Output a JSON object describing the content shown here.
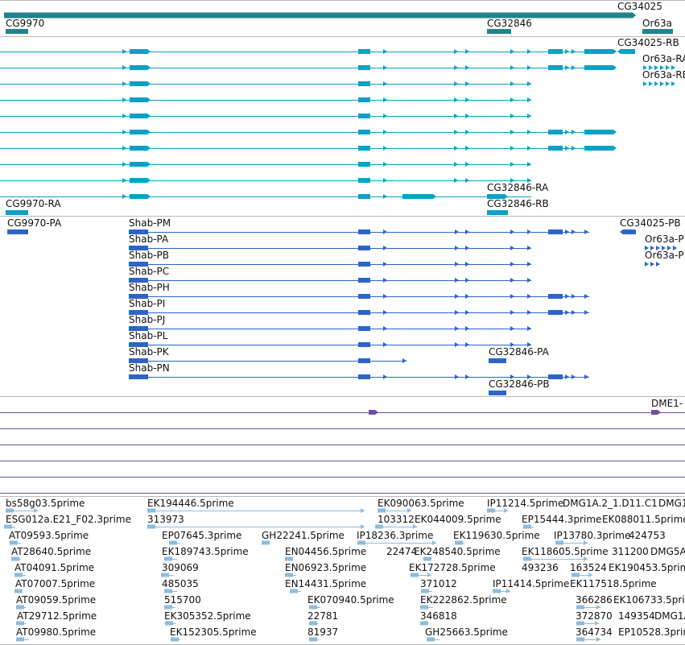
{
  "colors": {
    "gene": "#23838d",
    "transcript": "#0aa1c4",
    "protein": "#2d64c8",
    "feature": "#6e50a5",
    "est": "#8cbce0",
    "divider": "#b9b9b9"
  },
  "genes": {
    "labels": [
      {
        "id": "CG9970",
        "text": "CG9970"
      },
      {
        "id": "CG32846",
        "text": "CG32846"
      },
      {
        "id": "CG34025",
        "text": "CG34025"
      },
      {
        "id": "Or63a",
        "text": "Or63a"
      }
    ]
  },
  "transcripts": {
    "labels": [
      {
        "id": "CG34025-RB",
        "text": "CG34025-RB"
      },
      {
        "id": "Or63a-RA",
        "text": "Or63a-RA"
      },
      {
        "id": "Or63a-RB",
        "text": "Or63a-RB"
      },
      {
        "id": "CG32846-RA",
        "text": "CG32846-RA"
      },
      {
        "id": "CG32846-RB",
        "text": "CG32846-RB"
      },
      {
        "id": "CG9970-RA",
        "text": "CG9970-RA"
      }
    ]
  },
  "proteins": {
    "labels": [
      {
        "id": "CG9970-PA",
        "text": "CG9970-PA"
      },
      {
        "id": "Shab-PM",
        "text": "Shab-PM"
      },
      {
        "id": "Shab-PA",
        "text": "Shab-PA"
      },
      {
        "id": "Shab-PB",
        "text": "Shab-PB"
      },
      {
        "id": "Shab-PC",
        "text": "Shab-PC"
      },
      {
        "id": "Shab-PH",
        "text": "Shab-PH"
      },
      {
        "id": "Shab-PI",
        "text": "Shab-PI"
      },
      {
        "id": "Shab-PJ",
        "text": "Shab-PJ"
      },
      {
        "id": "Shab-PL",
        "text": "Shab-PL"
      },
      {
        "id": "Shab-PK",
        "text": "Shab-PK"
      },
      {
        "id": "Shab-PN",
        "text": "Shab-PN"
      },
      {
        "id": "CG34025-PB",
        "text": "CG34025-PB"
      },
      {
        "id": "Or63a-PA",
        "text": "Or63a-P"
      },
      {
        "id": "Or63a-PB",
        "text": "Or63a-P"
      },
      {
        "id": "CG32846-PA",
        "text": "CG32846-PA"
      },
      {
        "id": "CG32846-PB",
        "text": "CG32846-PB"
      }
    ]
  },
  "features": {
    "labels": [
      {
        "id": "DME1",
        "text": "DME1-"
      }
    ]
  },
  "ests": {
    "labels": [
      "bs58g03.5prime",
      "ESG012a.E21_F02.3prime",
      "AT09593.5prime",
      "AT28640.5prime",
      "AT04091.5prime",
      "AT07007.5prime",
      "AT09059.5prime",
      "AT29712.5prime",
      "AT09980.5prime",
      "EK194446.5prime",
      "313973",
      "EP07645.3prime",
      "EK189743.5prime",
      "309069",
      "485035",
      "515700",
      "EK305352.5prime",
      "EK152305.5prime",
      "GH22241.5prime",
      "EN04456.5prime",
      "EN06923.5prime",
      "EN14431.5prime",
      "EK070940.5prime",
      "22781",
      "81937",
      "EK090063.5prime",
      "103312",
      "EK044009.5prime",
      "IP18236.3prime",
      "22474",
      "EK248540.5prime",
      "EK172728.5prime",
      "371012",
      "EK222862.5prime",
      "346818",
      "GH25663.5prime",
      "IP11214.5prime",
      "DMG1A.2_1.D11.C1",
      "DMG1",
      "EP15444.3prime",
      "EK088011.5prime",
      "EK119630.5prime",
      "IP13780.3prime",
      "424753",
      "EK118605.5prime",
      "311200",
      "DMG5A",
      "493236",
      "163524",
      "EK190453.5prime",
      "IP11414.5prime",
      "EK117518.5prime",
      "366286",
      "EK106733.5prime",
      "372870",
      "149354",
      "DMG1A",
      "364734",
      "EP10528.3prime"
    ]
  }
}
